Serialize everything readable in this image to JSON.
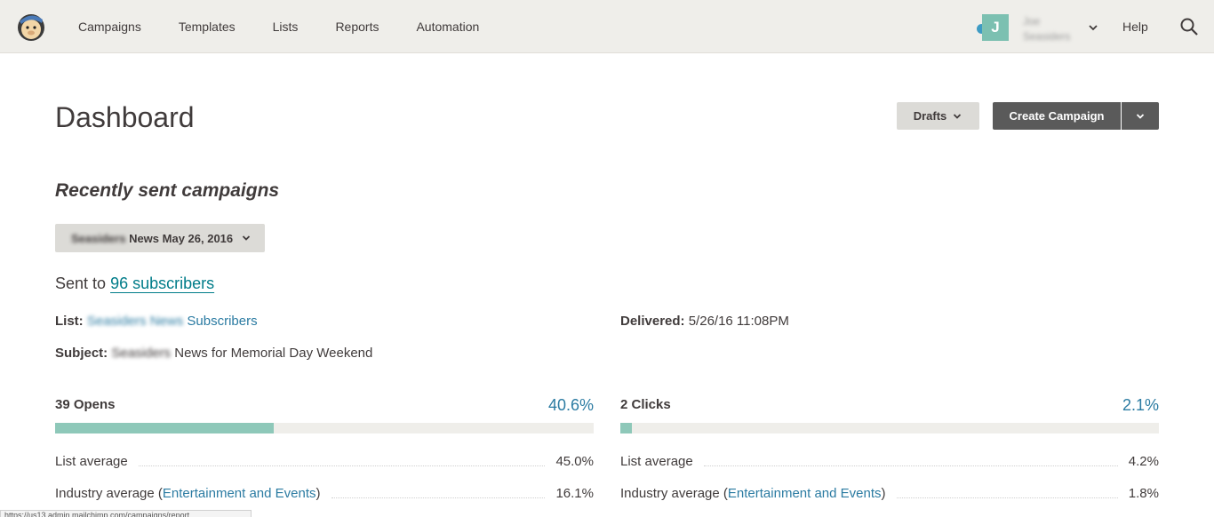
{
  "nav": {
    "items": [
      "Campaigns",
      "Templates",
      "Lists",
      "Reports",
      "Automation"
    ],
    "help": "Help"
  },
  "account": {
    "initial": "J",
    "first_name": "Joe",
    "org_name": "Seasiders"
  },
  "page": {
    "title": "Dashboard",
    "drafts_label": "Drafts",
    "create_label": "Create Campaign"
  },
  "recent": {
    "heading": "Recently sent campaigns",
    "campaign_blur": "Seasiders",
    "campaign_name": "News May 26, 2016"
  },
  "campaign": {
    "sent_to_prefix": "Sent to",
    "sent_to_link": "96 subscribers",
    "list_label": "List:",
    "list_value": "Seasiders News Subscribers",
    "list_blur": "Seasiders News",
    "list_visible": "Subscribers",
    "subject_label": "Subject:",
    "subject_blur": "Seasiders",
    "subject_visible": "News for Memorial Day Weekend",
    "delivered_label": "Delivered:",
    "delivered_value": "5/26/16 11:08PM"
  },
  "opens": {
    "title": "39 Opens",
    "pct": "40.6%",
    "fill": 0.406,
    "list_avg_label": "List average",
    "list_avg_value": "45.0%",
    "industry_label": "Industry average (",
    "industry_link": "Entertainment and Events",
    "industry_close": ")",
    "industry_value": "16.1%"
  },
  "clicks": {
    "title": "2 Clicks",
    "pct": "2.1%",
    "fill": 0.021,
    "list_avg_label": "List average",
    "list_avg_value": "4.2%",
    "industry_label": "Industry average (",
    "industry_link": "Entertainment and Events",
    "industry_close": ")",
    "industry_value": "1.8%"
  },
  "status_bar": "https://us13.admin.mailchimp.com/campaigns/report..."
}
